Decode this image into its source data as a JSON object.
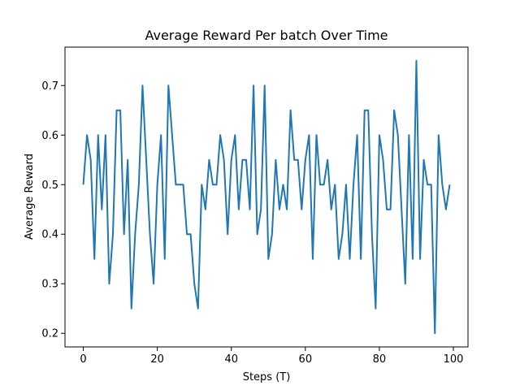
{
  "chart_data": {
    "type": "line",
    "title": "Average Reward Per batch Over Time",
    "xlabel": "Steps (T)",
    "ylabel": "Average Reward",
    "xlim": [
      -4.95,
      103.95
    ],
    "ylim": [
      0.1725,
      0.7775
    ],
    "xticks": [
      0,
      20,
      40,
      60,
      80,
      100
    ],
    "yticks": [
      0.2,
      0.3,
      0.4,
      0.5,
      0.6,
      0.7
    ],
    "xtick_labels": [
      "0",
      "20",
      "40",
      "60",
      "80",
      "100"
    ],
    "ytick_labels": [
      "0.2",
      "0.3",
      "0.4",
      "0.5",
      "0.6",
      "0.7"
    ],
    "grid": false,
    "series": [
      {
        "color": "#1f77b4",
        "x": [
          0,
          1,
          2,
          3,
          4,
          5,
          6,
          7,
          8,
          9,
          10,
          11,
          12,
          13,
          14,
          15,
          16,
          17,
          18,
          19,
          20,
          21,
          22,
          23,
          24,
          25,
          26,
          27,
          28,
          29,
          30,
          31,
          32,
          33,
          34,
          35,
          36,
          37,
          38,
          39,
          40,
          41,
          42,
          43,
          44,
          45,
          46,
          47,
          48,
          49,
          50,
          51,
          52,
          53,
          54,
          55,
          56,
          57,
          58,
          59,
          60,
          61,
          62,
          63,
          64,
          65,
          66,
          67,
          68,
          69,
          70,
          71,
          72,
          73,
          74,
          75,
          76,
          77,
          78,
          79,
          80,
          81,
          82,
          83,
          84,
          85,
          86,
          87,
          88,
          89,
          90,
          91,
          92,
          93,
          94,
          95,
          96,
          97,
          98,
          99
        ],
        "y": [
          0.5,
          0.6,
          0.55,
          0.35,
          0.6,
          0.45,
          0.6,
          0.3,
          0.4,
          0.65,
          0.65,
          0.4,
          0.55,
          0.25,
          0.4,
          0.5,
          0.7,
          0.55,
          0.4,
          0.3,
          0.5,
          0.6,
          0.35,
          0.7,
          0.6,
          0.5,
          0.5,
          0.5,
          0.4,
          0.4,
          0.3,
          0.25,
          0.5,
          0.45,
          0.55,
          0.5,
          0.5,
          0.6,
          0.55,
          0.4,
          0.55,
          0.6,
          0.45,
          0.55,
          0.55,
          0.45,
          0.7,
          0.4,
          0.45,
          0.7,
          0.35,
          0.4,
          0.55,
          0.45,
          0.5,
          0.45,
          0.65,
          0.55,
          0.55,
          0.45,
          0.55,
          0.6,
          0.35,
          0.6,
          0.5,
          0.5,
          0.55,
          0.45,
          0.5,
          0.35,
          0.4,
          0.5,
          0.35,
          0.5,
          0.6,
          0.35,
          0.65,
          0.65,
          0.4,
          0.25,
          0.6,
          0.55,
          0.45,
          0.45,
          0.65,
          0.6,
          0.45,
          0.3,
          0.6,
          0.35,
          0.75,
          0.35,
          0.55,
          0.5,
          0.5,
          0.2,
          0.6,
          0.5,
          0.45,
          0.5
        ]
      }
    ]
  }
}
